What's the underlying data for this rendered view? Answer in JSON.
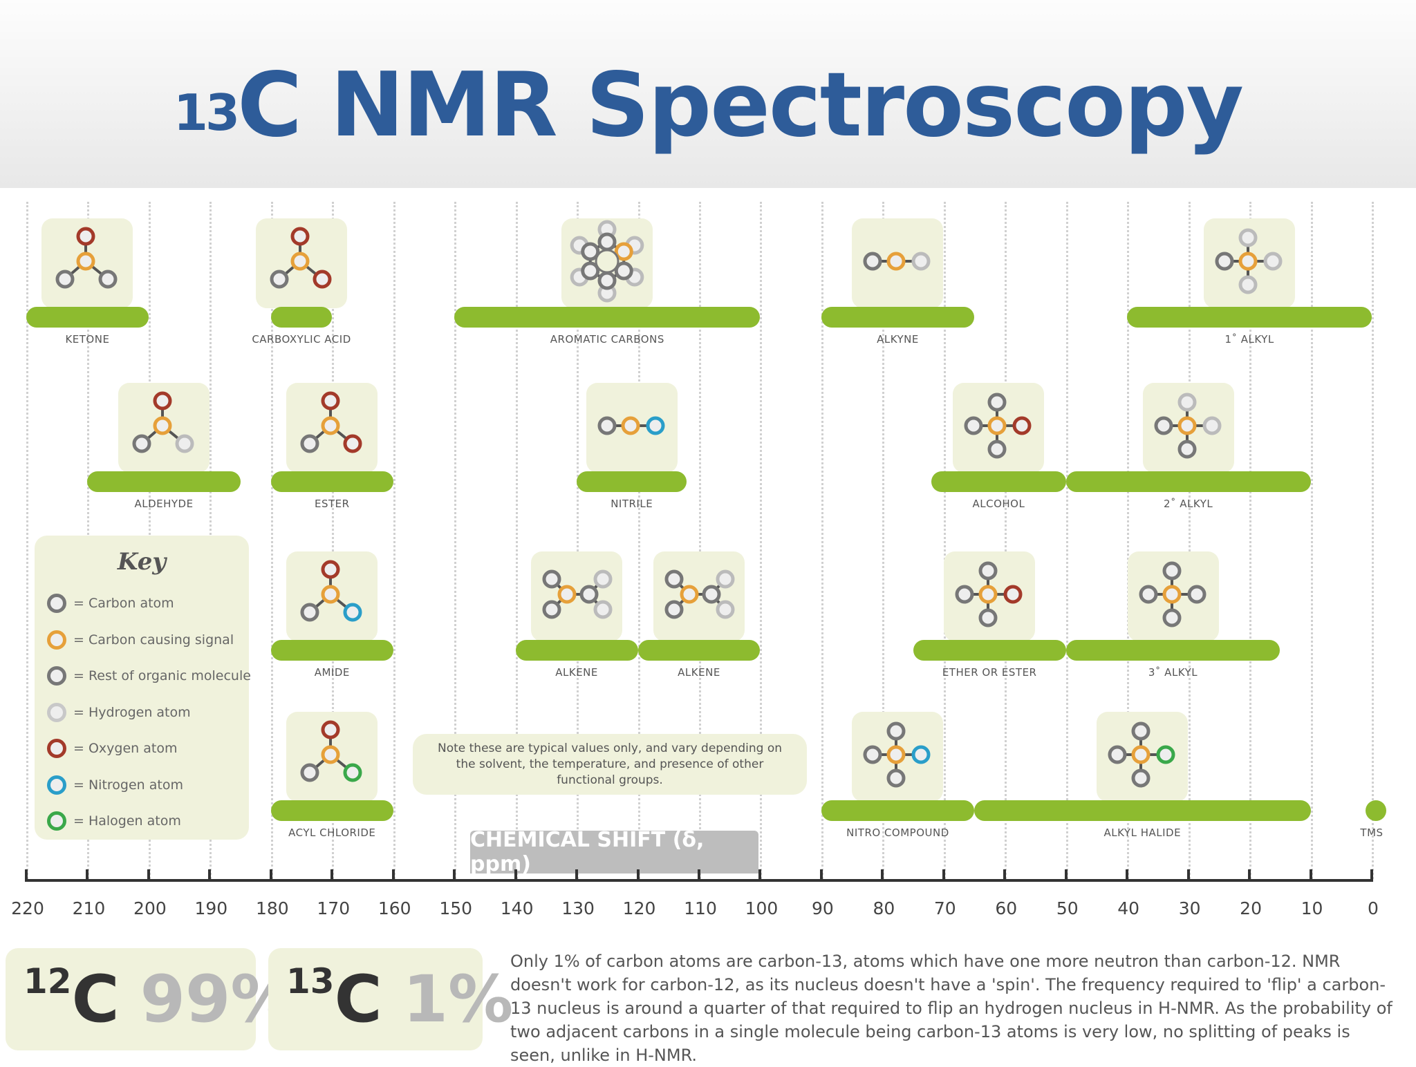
{
  "title": {
    "sup": "13",
    "main": "C NMR Spectroscopy"
  },
  "colors": {
    "bar": "#8dbb2f",
    "card": "#f0f2dc",
    "title": "#2e5c99",
    "carbon": "#777777",
    "signal_carbon": "#e6a03a",
    "oxygen": "#a33a2a",
    "nitrogen": "#2a9ec9",
    "halogen": "#3aa84a",
    "hydrogen": "#dddddd"
  },
  "bands": [
    {
      "label": "KETONE",
      "row": 1,
      "from": 220,
      "to": 200
    },
    {
      "label": "CARBOXYLIC ACID",
      "row": 1,
      "from": 180,
      "to": 170
    },
    {
      "label": "AROMATIC CARBONS",
      "row": 1,
      "from": 150,
      "to": 100
    },
    {
      "label": "ALKYNE",
      "row": 1,
      "from": 90,
      "to": 65
    },
    {
      "label": "1˚ ALKYL",
      "row": 1,
      "from": 40,
      "to": 0
    },
    {
      "label": "ALDEHYDE",
      "row": 2,
      "from": 210,
      "to": 185
    },
    {
      "label": "ESTER",
      "row": 2,
      "from": 180,
      "to": 160
    },
    {
      "label": "NITRILE",
      "row": 2,
      "from": 130,
      "to": 112
    },
    {
      "label": "ALCOHOL",
      "row": 2,
      "from": 72,
      "to": 50
    },
    {
      "label": "2˚ ALKYL",
      "row": 2,
      "from": 50,
      "to": 10
    },
    {
      "label": "AMIDE",
      "row": 3,
      "from": 180,
      "to": 160
    },
    {
      "label": "ALKENE",
      "row": 3,
      "from": 140,
      "to": 120
    },
    {
      "label": "ALKENE",
      "row": 3,
      "from": 120,
      "to": 100
    },
    {
      "label": "ETHER OR ESTER",
      "row": 3,
      "from": 75,
      "to": 50
    },
    {
      "label": "3˚ ALKYL",
      "row": 3,
      "from": 50,
      "to": 15
    },
    {
      "label": "ACYL CHLORIDE",
      "row": 4,
      "from": 180,
      "to": 160
    },
    {
      "label": "NITRO COMPOUND",
      "row": 4,
      "from": 90,
      "to": 65
    },
    {
      "label": "ALKYL HALIDE",
      "row": 4,
      "from": 65,
      "to": 10
    },
    {
      "label": "TMS",
      "row": 4,
      "from": 1,
      "to": -1
    }
  ],
  "key": {
    "title": "Key",
    "items": [
      {
        "symbol": "C",
        "text": "= Carbon atom",
        "fill": "#777777"
      },
      {
        "symbol": "C",
        "text": "= Carbon causing signal",
        "fill": "#e6a03a"
      },
      {
        "symbol": "R",
        "text": "= Rest of organic molecule",
        "fill": "#777777"
      },
      {
        "symbol": "H",
        "text": "= Hydrogen atom",
        "fill": "#dddddd"
      },
      {
        "symbol": "O",
        "text": "= Oxygen atom",
        "fill": "#a33a2a"
      },
      {
        "symbol": "N",
        "text": "= Nitrogen atom",
        "fill": "#2a9ec9"
      },
      {
        "symbol": "X",
        "text": "= Halogen atom",
        "fill": "#3aa84a"
      }
    ]
  },
  "note": "Note these are typical values only, and vary depending on the solvent, the temperature, and presence of other functional groups.",
  "axis": {
    "title": "CHEMICAL SHIFT (δ, ppm)",
    "ticks": [
      "220",
      "210",
      "200",
      "190",
      "180",
      "170",
      "160",
      "150",
      "140",
      "130",
      "120",
      "110",
      "100",
      "90",
      "80",
      "70",
      "60",
      "50",
      "40",
      "30",
      "20",
      "10",
      "0"
    ]
  },
  "isotopes": {
    "c12": {
      "mass": "12",
      "symbol": "C",
      "percent": "99%"
    },
    "c13": {
      "mass": "13",
      "symbol": "C",
      "percent": "1%"
    }
  },
  "paragraph": "Only 1% of carbon atoms are carbon-13, atoms which have one more neutron than carbon-12. NMR doesn't work for carbon-12, as its nucleus doesn't have a 'spin'. The frequency required to 'flip' a carbon-13 nucleus is around a quarter of that required to flip an hydrogen nucleus in H-NMR. As the probability of two adjacent carbons in a single molecule being carbon-13 atoms is very low, no splitting of peaks is seen, unlike in H-NMR."
}
